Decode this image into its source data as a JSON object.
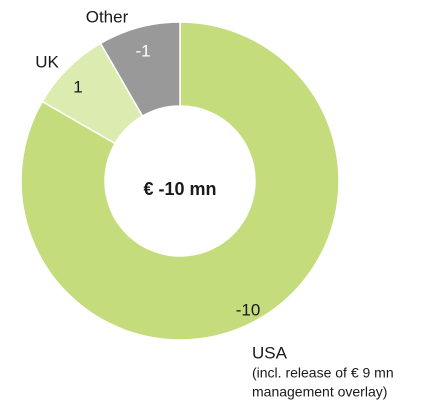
{
  "chart_data": {
    "type": "donut",
    "center_label": "€ -10 mn",
    "categories": [
      "USA",
      "UK",
      "Other"
    ],
    "values": [
      -10,
      1,
      -1
    ],
    "colors": [
      "#c5dc7d",
      "#dcebb0",
      "#999999"
    ],
    "value_label_colors": [
      "#1a1a1a",
      "#1a1a1a",
      "#ffffff"
    ],
    "note": [
      "(incl. release of € 9 mn",
      "management overlay)"
    ]
  }
}
